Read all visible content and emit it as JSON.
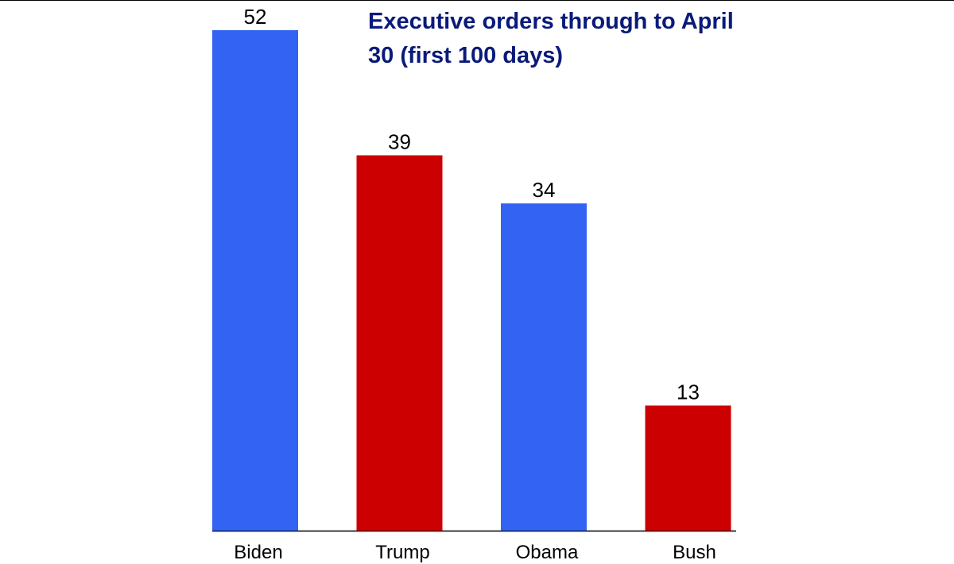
{
  "chart_data": {
    "type": "bar",
    "title": "Executive orders through to April 30 (first 100 days)",
    "categories": [
      "Biden",
      "Trump",
      "Obama",
      "Bush"
    ],
    "values": [
      52,
      39,
      34,
      13
    ],
    "colors": [
      "#3363f2",
      "#cc0000",
      "#3363f2",
      "#cc0000"
    ],
    "ylim": [
      0,
      52
    ]
  }
}
